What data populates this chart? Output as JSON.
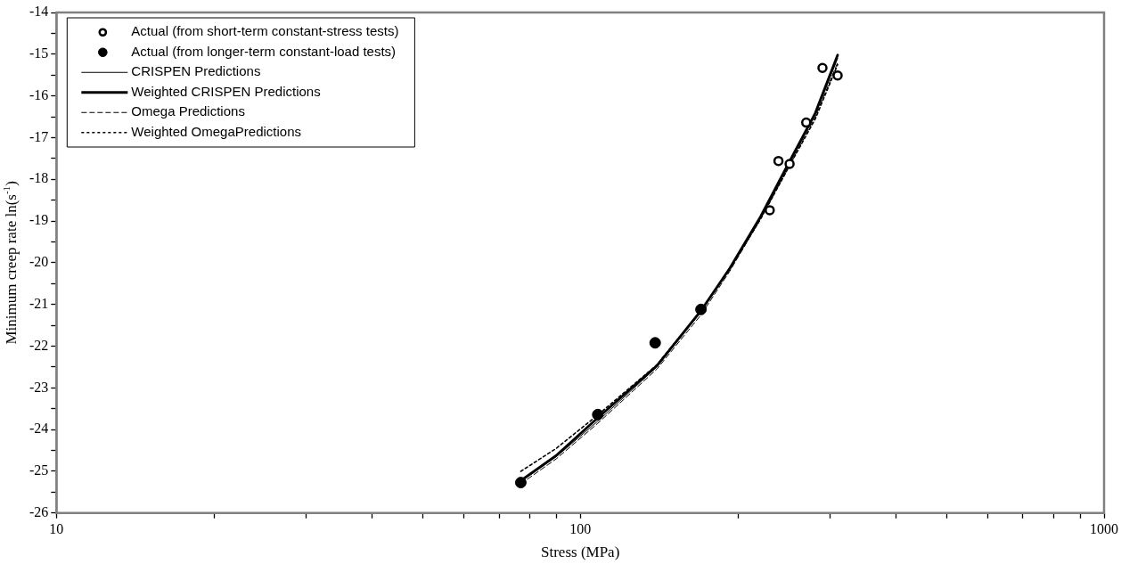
{
  "chart_data": {
    "type": "line",
    "xlabel": "Stress (MPa)",
    "ylabel": "Minimum creep rate ln(s$^{-1}$)",
    "log": "x",
    "grid": false,
    "legend": "top left",
    "xlim": [
      10,
      1000
    ],
    "xticks": [
      10,
      {
        "value": 20,
        "label": null
      },
      {
        "value": 30,
        "label": null
      },
      {
        "value": 40,
        "label": null
      },
      {
        "value": 50,
        "label": null
      },
      {
        "value": 60,
        "label": null
      },
      {
        "value": 70,
        "label": null
      },
      {
        "value": 80,
        "label": null
      },
      {
        "value": 90,
        "label": null
      },
      100,
      {
        "value": 200,
        "label": null
      },
      {
        "value": 300,
        "label": null
      },
      {
        "value": 400,
        "label": null
      },
      {
        "value": 500,
        "label": null
      },
      {
        "value": 600,
        "label": null
      },
      {
        "value": 700,
        "label": null
      },
      {
        "value": 800,
        "label": null
      },
      {
        "value": 900,
        "label": null
      },
      1000
    ],
    "ylim": [
      -26,
      -14
    ],
    "yticks": [
      -26,
      {
        "value": -25.5,
        "label": null
      },
      -25,
      {
        "value": -24.5,
        "label": null
      },
      -24,
      {
        "value": -23.5,
        "label": null
      },
      -23,
      {
        "value": -22.5,
        "label": null
      },
      -22,
      {
        "value": -21.5,
        "label": null
      },
      -21,
      {
        "value": -20.5,
        "label": null
      },
      -20,
      {
        "value": -19.5,
        "label": null
      },
      -19,
      {
        "value": -18.5,
        "label": null
      },
      -18,
      {
        "value": -17.5,
        "label": null
      },
      -17,
      {
        "value": -16.5,
        "label": null
      },
      -16,
      {
        "value": -15.5,
        "label": null
      },
      -15,
      {
        "value": -14.5,
        "label": null
      },
      -14
    ],
    "series": [
      {
        "name": "Actual (from short-term constant-stress tests)",
        "type": "scatter",
        "marker": "circle",
        "color": "#000000",
        "x": [
          230,
          239,
          251,
          270,
          290,
          310
        ],
        "values": [
          -18.74,
          -17.56,
          -17.63,
          -16.64,
          -15.33,
          -15.51
        ]
      },
      {
        "name": "Actual (from longer-term constant-load tests)",
        "type": "scatter",
        "marker": "circle",
        "color": "#000000",
        "x": [
          77,
          108,
          139,
          170
        ],
        "values": [
          -25.27,
          -23.64,
          -21.92,
          -21.12
        ]
      },
      {
        "name": "CRISPEN Predictions",
        "type": "line",
        "line_style": "solid",
        "color": "#000000",
        "x": [
          77,
          90,
          108,
          140,
          170,
          193,
          221,
          249,
          281,
          310
        ],
        "values": [
          -25.25,
          -24.65,
          -23.8,
          -22.5,
          -21.18,
          -20.15,
          -18.92,
          -17.7,
          -16.45,
          -15.1
        ]
      },
      {
        "name": "Weighted CRISPEN Predictions",
        "type": "line",
        "line_style": "solid",
        "color": "#000000",
        "x": [
          77,
          90,
          108,
          140,
          170,
          193,
          221,
          249,
          281,
          310
        ],
        "values": [
          -25.22,
          -24.62,
          -23.72,
          -22.47,
          -21.15,
          -20.13,
          -18.89,
          -17.65,
          -16.41,
          -15.02
        ]
      },
      {
        "name": "Omega Predictions",
        "type": "line",
        "line_style": "dashed",
        "color": "#000000",
        "x": [
          77,
          90,
          108,
          140,
          170,
          193,
          221,
          249,
          281,
          310
        ],
        "values": [
          -25.3,
          -24.7,
          -23.85,
          -22.55,
          -21.25,
          -20.2,
          -18.95,
          -17.75,
          -16.5,
          -15.2
        ]
      },
      {
        "name": "Weighted OmegaPredictions",
        "type": "line",
        "line_style": "dotted",
        "color": "#000000",
        "x": [
          77,
          90,
          108,
          140,
          170,
          193,
          221,
          249,
          281,
          310
        ],
        "values": [
          -25.0,
          -24.45,
          -23.65,
          -22.45,
          -21.15,
          -20.15,
          -18.95,
          -17.75,
          -16.55,
          -15.25
        ]
      }
    ]
  }
}
